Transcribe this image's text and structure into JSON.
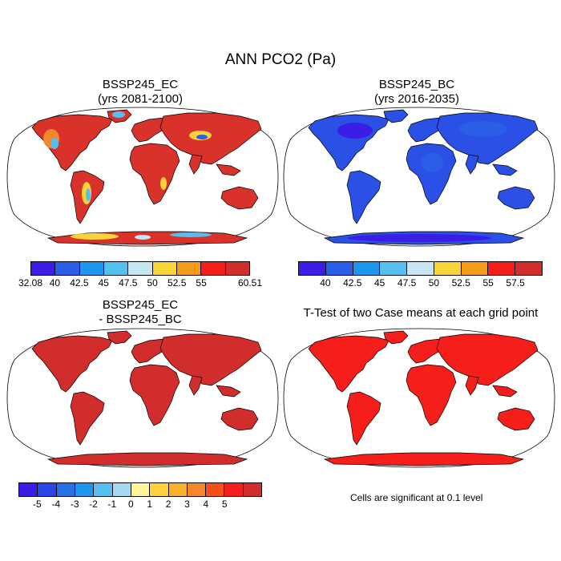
{
  "title": "ANN PCO2 (Pa)",
  "panels": [
    {
      "line1": "BSSP245_EC",
      "line2": "(yrs 2081-2100)"
    },
    {
      "line1": "BSSP245_BC",
      "line2": "(yrs 2016-2035)"
    },
    {
      "line1": "BSSP245_EC",
      "line2": "- BSSP245_BC"
    },
    {
      "line1": "T-Test of two Case means at each grid point",
      "line2": ""
    }
  ],
  "colorbars": [
    {
      "colors": [
        "#3a1ee6",
        "#2a5ee8",
        "#1e96ee",
        "#55bff0",
        "#c6e6f3",
        "#f9d33a",
        "#f59a1a",
        "#f51e1a",
        "#d22d2d"
      ],
      "labels": [
        "32.08",
        "40",
        "42.5",
        "45",
        "47.5",
        "50",
        "52.5",
        "55",
        "60.51"
      ]
    },
    {
      "colors": [
        "#3a1ee6",
        "#2a5ee8",
        "#1e96ee",
        "#55bff0",
        "#c6e6f3",
        "#f9d33a",
        "#f59a1a",
        "#f51e1a",
        "#d22d2d"
      ],
      "labels": [
        "40",
        "42.5",
        "45",
        "47.5",
        "50",
        "52.5",
        "55",
        "57.5"
      ]
    },
    {
      "colors": [
        "#3a1ee6",
        "#2a46e8",
        "#2a6ee8",
        "#1e96ee",
        "#55bff0",
        "#a6d8f0",
        "#fff59a",
        "#fcd23c",
        "#f8b22a",
        "#f5862a",
        "#f54f1a",
        "#f51e1a",
        "#d22d2d"
      ],
      "labels": [
        "-5",
        "-4",
        "-3",
        "-2",
        "-1",
        "0",
        "1",
        "2",
        "3",
        "4",
        "5"
      ]
    }
  ],
  "significance_note": "Cells are significant at 0.1 level",
  "map_fills": {
    "ec_land": "#d8322b",
    "bc_land": "#2a50e6",
    "diff_land": "#d22d2d",
    "ttest_land": "#f51e1a"
  }
}
